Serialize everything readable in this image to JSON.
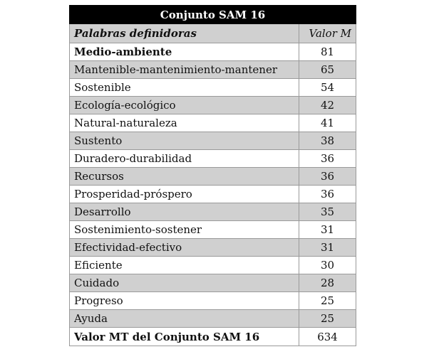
{
  "table": {
    "title": "Conjunto SAM 16",
    "headers": {
      "word": "Palabras definidoras",
      "value": "Valor M"
    },
    "rows": [
      {
        "word": "Medio-ambiente",
        "value": "81"
      },
      {
        "word": "Mantenible-mantenimiento-mantener",
        "value": "65"
      },
      {
        "word": "Sostenible",
        "value": "54"
      },
      {
        "word": "Ecología-ecológico",
        "value": "42"
      },
      {
        "word": "Natural-naturaleza",
        "value": "41"
      },
      {
        "word": "Sustento",
        "value": "38"
      },
      {
        "word": "Duradero-durabilidad",
        "value": "36"
      },
      {
        "word": "Recursos",
        "value": "36"
      },
      {
        "word": "Prosperidad-próspero",
        "value": "36"
      },
      {
        "word": "Desarrollo",
        "value": "35"
      },
      {
        "word": "Sostenimiento-sostener",
        "value": "31"
      },
      {
        "word": "Efectividad-efectivo",
        "value": "31"
      },
      {
        "word": "Eficiente",
        "value": "30"
      },
      {
        "word": "Cuidado",
        "value": "28"
      },
      {
        "word": "Progreso",
        "value": "25"
      },
      {
        "word": "Ayuda",
        "value": "25"
      }
    ],
    "total": {
      "label": "Valor MT del Conjunto SAM 16",
      "value": "634"
    }
  }
}
